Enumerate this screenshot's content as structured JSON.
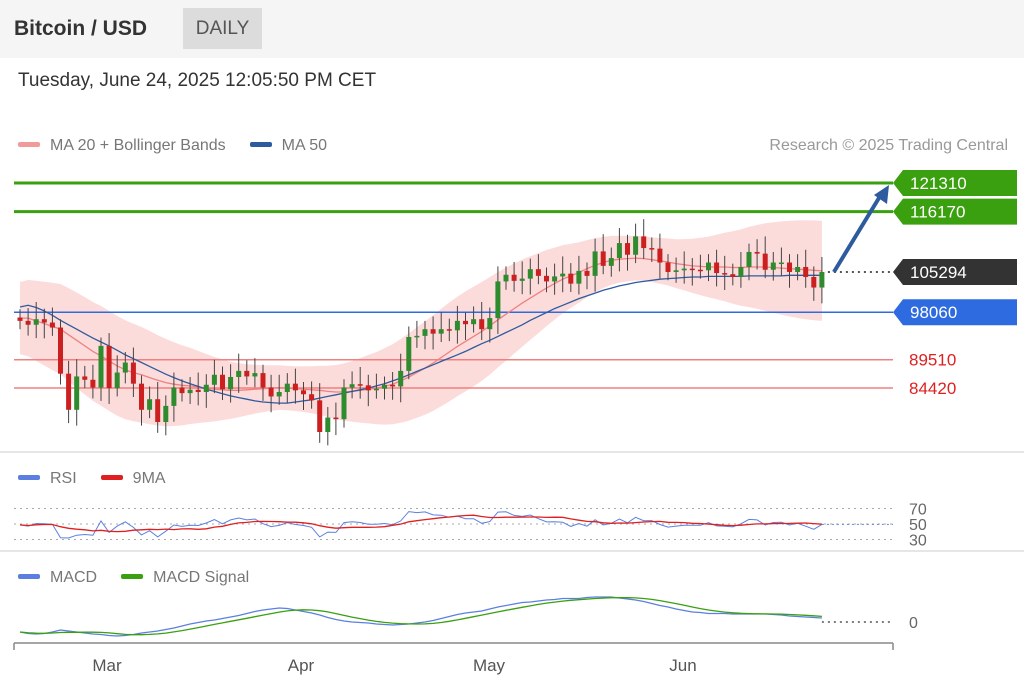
{
  "header": {
    "title": "Bitcoin / USD",
    "interval": "DAILY"
  },
  "timestamp": "Tuesday, June 24, 2025 12:05:50 PM CET",
  "legend_main": [
    {
      "label": "MA 20 + Bollinger Bands",
      "color": "#f08080"
    },
    {
      "label": "MA 50",
      "color": "#2e5b9e"
    }
  ],
  "legend_rsi": [
    {
      "label": "RSI",
      "color": "#5b7fe0"
    },
    {
      "label": "9MA",
      "color": "#e02020"
    }
  ],
  "legend_macd": [
    {
      "label": "MACD",
      "color": "#5b7fe0"
    },
    {
      "label": "MACD Signal",
      "color": "#3aa010"
    }
  ],
  "credit": "Research © 2025 Trading Central",
  "colors": {
    "up": "#2e8b2e",
    "down": "#cc1f1f",
    "resistance": "#3aa010",
    "support": "#2e6be0",
    "pivot_line": "#f08080",
    "last_price": "#333333",
    "bands": "#fbd5d5"
  },
  "chart_data": [
    {
      "type": "candlestick",
      "title": "Bitcoin / USD",
      "x_labels": [
        "Mar",
        "Apr",
        "May",
        "Jun"
      ],
      "levels": [
        {
          "label": "121310",
          "value": 121310,
          "kind": "resistance"
        },
        {
          "label": "116170",
          "value": 116170,
          "kind": "resistance"
        },
        {
          "label": "98060",
          "value": 98060,
          "kind": "pivot"
        },
        {
          "label": "89510",
          "value": 89510,
          "kind": "support"
        },
        {
          "label": "84420",
          "value": 84420,
          "kind": "support"
        }
      ],
      "last_price": {
        "label": "105294",
        "value": 105294
      },
      "close": [
        96500,
        95800,
        96800,
        96200,
        95300,
        87000,
        80500,
        86500,
        85900,
        84500,
        92000,
        84400,
        87200,
        89000,
        85200,
        80500,
        82400,
        78300,
        81200,
        84500,
        83500,
        84100,
        83700,
        85000,
        86800,
        84200,
        86400,
        87500,
        86500,
        87100,
        84500,
        82900,
        83700,
        85200,
        84000,
        83300,
        82200,
        76500,
        79100,
        78800,
        84500,
        85100,
        84900,
        84000,
        84300,
        85000,
        84700,
        87500,
        93600,
        93800,
        95000,
        94200,
        95000,
        94800,
        96500,
        95900,
        96800,
        95000,
        97000,
        103600,
        104800,
        103700,
        104100,
        105800,
        104600,
        103600,
        104500,
        105000,
        103200,
        105500,
        104600,
        109000,
        106400,
        107800,
        110500,
        108400,
        111700,
        109600,
        109500,
        107000,
        105300,
        105600,
        105900,
        105700,
        105600,
        107000,
        105100,
        104900,
        104400,
        106200,
        108900,
        108600,
        105700,
        107000,
        107000,
        105300,
        106200,
        104400,
        102500,
        105294
      ],
      "ma50": [
        99000,
        99300,
        98900,
        98300,
        97500,
        96600,
        95800,
        95000,
        94200,
        93400,
        92700,
        92000,
        91200,
        90400,
        89700,
        89000,
        88300,
        87600,
        86900,
        86300,
        85700,
        85200,
        84700,
        84200,
        83800,
        83400,
        83000,
        82700,
        82400,
        82100,
        81900,
        81800,
        81700,
        81700,
        81900,
        82100,
        82300,
        82600,
        82900,
        83200,
        83500,
        83800,
        84100,
        84400,
        84800,
        85200,
        85700,
        86200,
        86800,
        87400,
        88000,
        88600,
        89200,
        89800,
        90400,
        91000,
        91700,
        92400,
        93000,
        93700,
        94400,
        95100,
        95800,
        96600,
        97300,
        98000,
        98700,
        99300,
        99900,
        100500,
        101000,
        101500,
        102000,
        102400,
        102800,
        103100,
        103400,
        103600,
        103800,
        104000,
        104100,
        104200,
        104300,
        104400,
        104400,
        104500,
        104500,
        104500,
        104500,
        104500,
        104600,
        104600,
        104600,
        104600,
        104600,
        104700,
        104700,
        104700,
        104700,
        104700
      ],
      "ma20": [
        97000,
        97000,
        96500,
        96000,
        95500,
        95000,
        94000,
        93000,
        92000,
        91000,
        90200,
        89300,
        88400,
        87700,
        87200,
        86800,
        86300,
        85800,
        85400,
        85100,
        84900,
        84800,
        84600,
        84400,
        84200,
        84100,
        84000,
        84000,
        84100,
        84200,
        84300,
        84400,
        84500,
        84400,
        84300,
        84200,
        84100,
        84000,
        83800,
        83700,
        83700,
        83800,
        84000,
        84200,
        84400,
        84700,
        85100,
        85700,
        86400,
        87200,
        88000,
        88900,
        89900,
        90900,
        91900,
        92800,
        93700,
        94600,
        95600,
        96700,
        97700,
        98700,
        99700,
        100600,
        101500,
        102400,
        103200,
        104000,
        104600,
        105200,
        105900,
        106500,
        107000,
        107400,
        107600,
        107700,
        107800,
        107700,
        107500,
        107300,
        107100,
        106800,
        106600,
        106400,
        106300,
        106200,
        106200,
        106200,
        106100,
        106100,
        106200,
        106200,
        106200,
        106100,
        106000,
        105900,
        105800,
        105700,
        105600,
        105500
      ]
    },
    {
      "type": "line",
      "title": "RSI",
      "y_ticks": [
        70,
        50,
        30
      ],
      "series": [
        {
          "name": "RSI"
        },
        {
          "name": "9MA"
        }
      ]
    },
    {
      "type": "line",
      "title": "MACD",
      "y_ticks": [
        0
      ],
      "series": [
        {
          "name": "MACD"
        },
        {
          "name": "MACD Signal"
        }
      ]
    }
  ]
}
